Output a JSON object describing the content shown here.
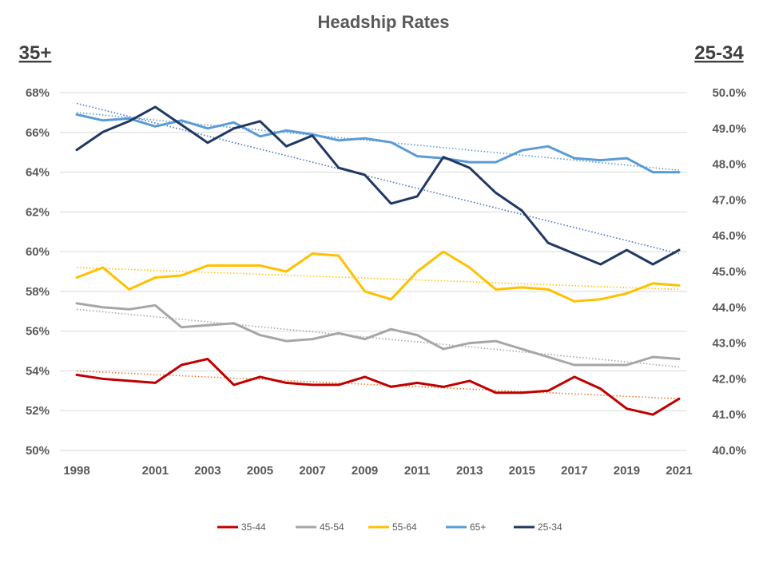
{
  "chart_data": {
    "type": "line",
    "title": "Headship Rates",
    "left_axis_title": "35+",
    "right_axis_title": "25-34",
    "left_ylim": [
      50,
      68
    ],
    "left_ticks": [
      "50%",
      "52%",
      "54%",
      "56%",
      "58%",
      "60%",
      "62%",
      "64%",
      "66%",
      "68%"
    ],
    "right_ylim": [
      40,
      50
    ],
    "right_ticks": [
      "40.0%",
      "41.0%",
      "42.0%",
      "43.0%",
      "44.0%",
      "45.0%",
      "46.0%",
      "47.0%",
      "48.0%",
      "49.0%",
      "50.0%"
    ],
    "x": [
      1998,
      1999,
      2000,
      2001,
      2002,
      2003,
      2004,
      2005,
      2006,
      2007,
      2008,
      2009,
      2010,
      2011,
      2012,
      2013,
      2014,
      2015,
      2016,
      2017,
      2018,
      2019,
      2020,
      2021
    ],
    "x_tick_labels": [
      "1998",
      "2001",
      "2003",
      "2005",
      "2007",
      "2009",
      "2011",
      "2013",
      "2015",
      "2017",
      "2019",
      "2021"
    ],
    "grid": true,
    "legend_position": "bottom",
    "series": [
      {
        "name": "35-44",
        "axis": "left",
        "color": "#c00000",
        "values": [
          53.8,
          53.6,
          53.5,
          53.4,
          54.3,
          54.6,
          53.3,
          53.7,
          53.4,
          53.3,
          53.3,
          53.7,
          53.2,
          53.4,
          53.2,
          53.5,
          52.9,
          52.9,
          53.0,
          53.7,
          53.1,
          52.1,
          51.8,
          52.6
        ],
        "trend": [
          54.0,
          52.6
        ],
        "trend_color": "#ed7d31"
      },
      {
        "name": "45-54",
        "axis": "left",
        "color": "#a6a6a6",
        "values": [
          57.4,
          57.2,
          57.1,
          57.3,
          56.2,
          56.3,
          56.4,
          55.8,
          55.5,
          55.6,
          55.9,
          55.6,
          56.1,
          55.8,
          55.1,
          55.4,
          55.5,
          55.1,
          54.7,
          54.3,
          54.3,
          54.3,
          54.7,
          54.6
        ],
        "trend": [
          57.1,
          54.2
        ],
        "trend_color": "#a6a6a6"
      },
      {
        "name": "55-64",
        "axis": "left",
        "color": "#ffc000",
        "values": [
          58.7,
          59.2,
          58.1,
          58.7,
          58.8,
          59.3,
          59.3,
          59.3,
          59.0,
          59.9,
          59.8,
          58.0,
          57.6,
          59.0,
          60.0,
          59.2,
          58.1,
          58.2,
          58.1,
          57.5,
          57.6,
          57.9,
          58.4,
          58.3
        ],
        "trend": [
          59.2,
          58.1
        ],
        "trend_color": "#ffc000"
      },
      {
        "name": "65+",
        "axis": "left",
        "color": "#5b9bd5",
        "values": [
          66.9,
          66.6,
          66.7,
          66.3,
          66.6,
          66.2,
          66.5,
          65.8,
          66.1,
          65.9,
          65.6,
          65.7,
          65.5,
          64.8,
          64.7,
          64.5,
          64.5,
          65.1,
          65.3,
          64.7,
          64.6,
          64.7,
          64.0,
          64.0
        ],
        "trend": [
          67.0,
          64.1
        ],
        "trend_color": "#5b9bd5"
      },
      {
        "name": "25-34",
        "axis": "right",
        "color": "#203864",
        "values": [
          48.4,
          48.9,
          49.2,
          49.6,
          49.1,
          48.6,
          49.0,
          49.2,
          48.5,
          48.8,
          47.9,
          47.7,
          46.9,
          47.1,
          48.2,
          47.9,
          47.2,
          46.7,
          45.8,
          45.5,
          45.2,
          45.6,
          45.2,
          45.6
        ],
        "trend": [
          49.7,
          45.5
        ],
        "trend_color": "#4472c4"
      }
    ]
  }
}
